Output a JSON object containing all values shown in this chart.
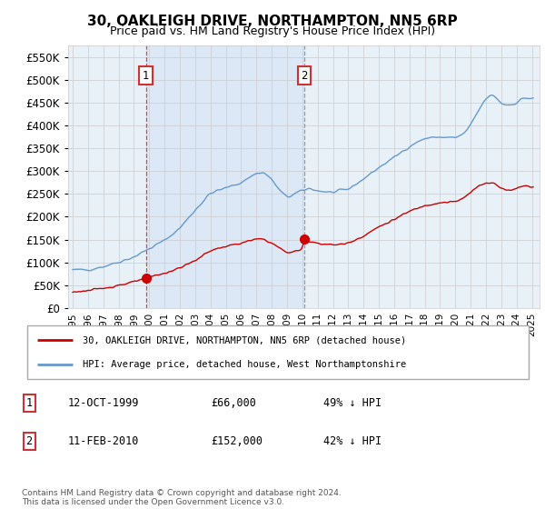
{
  "title": "30, OAKLEIGH DRIVE, NORTHAMPTON, NN5 6RP",
  "subtitle": "Price paid vs. HM Land Registry's House Price Index (HPI)",
  "legend_line1": "30, OAKLEIGH DRIVE, NORTHAMPTON, NN5 6RP (detached house)",
  "legend_line2": "HPI: Average price, detached house, West Northamptonshire",
  "footnote": "Contains HM Land Registry data © Crown copyright and database right 2024.\nThis data is licensed under the Open Government Licence v3.0.",
  "purchase1_date": "12-OCT-1999",
  "purchase1_price": 66000,
  "purchase1_label": "49% ↓ HPI",
  "purchase2_date": "11-FEB-2010",
  "purchase2_price": 152000,
  "purchase2_label": "42% ↓ HPI",
  "red_color": "#cc0000",
  "blue_color": "#6699cc",
  "shade_color": "#dce8f5",
  "marker_box_color": "#cc3333",
  "dashed1_color": "#dd4444",
  "dashed2_color": "#999999",
  "background_color": "#e8f0f8",
  "grid_color": "#cccccc",
  "ylim": [
    0,
    575000
  ],
  "yticks": [
    0,
    50000,
    100000,
    150000,
    200000,
    250000,
    300000,
    350000,
    400000,
    450000,
    500000,
    550000
  ],
  "p1_x": 1999.79,
  "p1_y": 66000,
  "p2_x": 2010.12,
  "p2_y": 152000,
  "xlim_lo": 1994.7,
  "xlim_hi": 2025.5
}
